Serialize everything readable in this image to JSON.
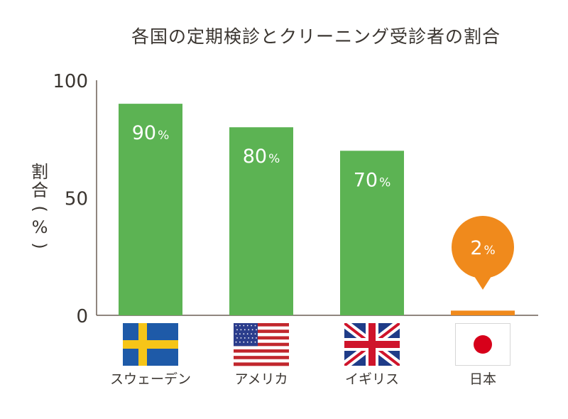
{
  "chart_data": {
    "type": "bar",
    "title": "各国の定期検診とクリーニング受診者の割合",
    "ylabel_chars": [
      "割",
      "合",
      "(",
      "%",
      ")"
    ],
    "ylim": [
      0,
      100
    ],
    "yticks": [
      0,
      50,
      100
    ],
    "grid": false,
    "categories": [
      "スウェーデン",
      "アメリカ",
      "イギリス",
      "日本"
    ],
    "flags": [
      "sweden-flag",
      "usa-flag",
      "uk-flag",
      "japan-flag"
    ],
    "values": [
      90,
      80,
      70,
      2
    ],
    "value_labels": [
      "90",
      "80",
      "70",
      "2"
    ],
    "value_unit": "%",
    "colors": {
      "bar": "#5cb353",
      "highlight_bar": "#f08a1c",
      "callout": "#f08a1c",
      "axis": "#6b5e55"
    },
    "highlight_index": 3
  }
}
